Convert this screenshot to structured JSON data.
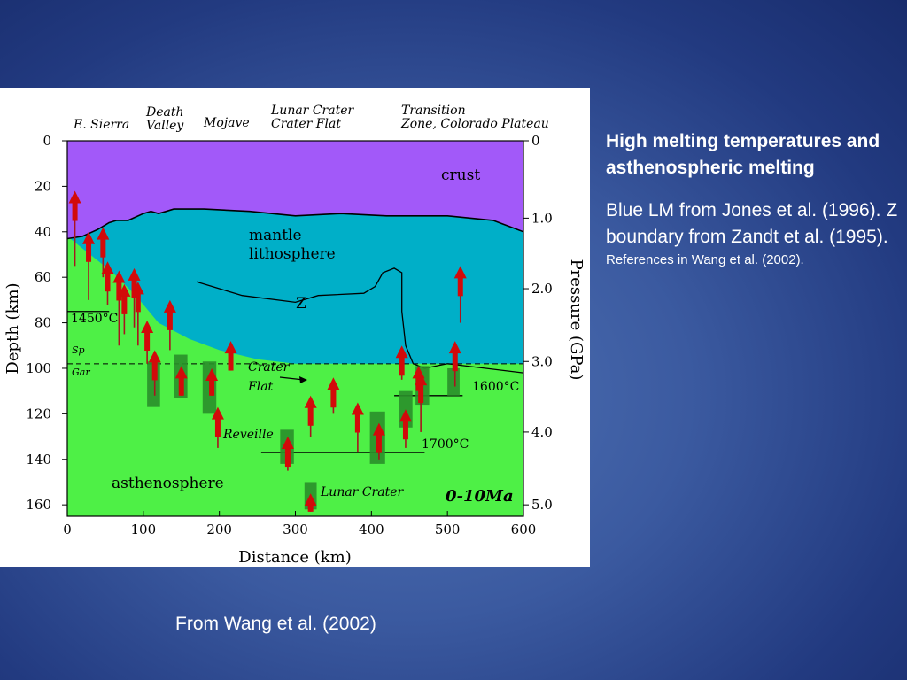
{
  "slide": {
    "title": "High melting temperatures and asthenospheric melting",
    "body": "Blue LM from Jones et al. (1996). Z boundary from Zandt et al. (1995).",
    "references": "References in Wang et al. (2002).",
    "caption": "From Wang et al. (2002)"
  },
  "figure": {
    "region_labels": [
      {
        "line1": "E. Sierra",
        "line2": ""
      },
      {
        "line1": "Death",
        "line2": "Valley"
      },
      {
        "line1": "Mojave",
        "line2": ""
      },
      {
        "line1": "Lunar Crater",
        "line2": "Crater Flat"
      },
      {
        "line1": "Transition",
        "line2": "Zone, Colorado Plateau"
      }
    ],
    "zone_labels": {
      "crust": "crust",
      "mantle_lithosphere_1": "mantle",
      "mantle_lithosphere_2": "lithosphere",
      "asthenosphere": "asthenosphere",
      "z_boundary": "Z",
      "sp": "Sp",
      "gar": "Gar"
    },
    "annotations": {
      "crater_flat_1": "Crater",
      "crater_flat_2": "Flat",
      "reveille": "Reveille",
      "lunar_crater": "Lunar Crater",
      "age": "0-10Ma",
      "t1450": "1450°C",
      "t1600": "1600°C",
      "t1700": "1700°C"
    },
    "colors": {
      "crust": "#a259f9",
      "mantle_lithosphere": "#00afc8",
      "asthenosphere": "#4ef046",
      "arrow": "#d20a0a",
      "box": "#2a8f2a"
    }
  },
  "chart_data": {
    "type": "cross-section",
    "xlabel": "Distance (km)",
    "ylabel": "Depth (km)",
    "y2label": "Pressure (GPa)",
    "xticks": [
      "0",
      "100",
      "200",
      "300",
      "400",
      "500",
      "600"
    ],
    "yticks": [
      "0",
      "20",
      "40",
      "60",
      "80",
      "100",
      "120",
      "140",
      "160"
    ],
    "y2ticks": [
      "0",
      "1.0",
      "2.0",
      "3.0",
      "4.0",
      "5.0"
    ],
    "xlim": [
      0,
      600
    ],
    "ylim": [
      0,
      165
    ],
    "y2_depths": [
      0,
      34,
      65,
      97,
      128,
      160
    ],
    "moho_depth": [
      [
        0,
        43
      ],
      [
        20,
        42
      ],
      [
        40,
        39
      ],
      [
        55,
        36
      ],
      [
        65,
        35
      ],
      [
        80,
        35
      ],
      [
        100,
        32
      ],
      [
        110,
        31
      ],
      [
        120,
        32
      ],
      [
        130,
        31
      ],
      [
        140,
        30
      ],
      [
        180,
        30
      ],
      [
        240,
        31
      ],
      [
        300,
        33
      ],
      [
        360,
        32
      ],
      [
        420,
        33
      ],
      [
        500,
        33
      ],
      [
        560,
        35
      ],
      [
        600,
        40
      ]
    ],
    "lab_depth": [
      [
        0,
        42
      ],
      [
        30,
        50
      ],
      [
        60,
        58
      ],
      [
        90,
        68
      ],
      [
        120,
        80
      ],
      [
        160,
        87
      ],
      [
        200,
        92
      ],
      [
        250,
        96
      ],
      [
        300,
        98
      ],
      [
        350,
        98
      ],
      [
        420,
        98
      ],
      [
        600,
        98
      ]
    ],
    "z_boundary": [
      [
        170,
        62
      ],
      [
        230,
        68
      ],
      [
        300,
        71
      ],
      [
        330,
        68
      ],
      [
        390,
        67
      ],
      [
        405,
        64
      ],
      [
        415,
        58
      ],
      [
        430,
        56
      ],
      [
        440,
        58
      ],
      [
        440,
        75
      ],
      [
        445,
        90
      ],
      [
        455,
        98
      ],
      [
        470,
        100
      ],
      [
        500,
        98
      ],
      [
        600,
        102
      ]
    ],
    "sp_gar_depth": 98,
    "isotherms": [
      {
        "label": "1450°C",
        "depth": 75,
        "x_range": [
          0,
          55
        ]
      },
      {
        "label": "1600°C",
        "depth": 112,
        "x_range": [
          430,
          520
        ]
      },
      {
        "label": "1700°C",
        "depth": 137,
        "x_range": [
          255,
          470
        ]
      }
    ],
    "arrows": [
      {
        "x": 10,
        "depth_top": 22,
        "depth_bottom": 55
      },
      {
        "x": 28,
        "depth_top": 40,
        "depth_bottom": 70
      },
      {
        "x": 47,
        "depth_top": 38,
        "depth_bottom": 60
      },
      {
        "x": 53,
        "depth_top": 53,
        "depth_bottom": 72
      },
      {
        "x": 68,
        "depth_top": 57,
        "depth_bottom": 90
      },
      {
        "x": 75,
        "depth_top": 63,
        "depth_bottom": 85
      },
      {
        "x": 88,
        "depth_top": 56,
        "depth_bottom": 82
      },
      {
        "x": 93,
        "depth_top": 62,
        "depth_bottom": 90
      },
      {
        "x": 105,
        "depth_top": 79,
        "depth_bottom": 98
      },
      {
        "x": 115,
        "depth_top": 92,
        "depth_bottom": 112
      },
      {
        "x": 135,
        "depth_top": 70,
        "depth_bottom": 92
      },
      {
        "x": 150,
        "depth_top": 99,
        "depth_bottom": 112
      },
      {
        "x": 190,
        "depth_top": 100,
        "depth_bottom": 112
      },
      {
        "x": 198,
        "depth_top": 117,
        "depth_bottom": 135
      },
      {
        "x": 215,
        "depth_top": 88,
        "depth_bottom": 101
      },
      {
        "x": 290,
        "depth_top": 130,
        "depth_bottom": 145
      },
      {
        "x": 320,
        "depth_top": 112,
        "depth_bottom": 130
      },
      {
        "x": 350,
        "depth_top": 104,
        "depth_bottom": 120
      },
      {
        "x": 382,
        "depth_top": 115,
        "depth_bottom": 137
      },
      {
        "x": 410,
        "depth_top": 124,
        "depth_bottom": 140
      },
      {
        "x": 440,
        "depth_top": 90,
        "depth_bottom": 105
      },
      {
        "x": 445,
        "depth_top": 118,
        "depth_bottom": 135
      },
      {
        "x": 462,
        "depth_top": 99,
        "depth_bottom": 110
      },
      {
        "x": 465,
        "depth_top": 102,
        "depth_bottom": 128
      },
      {
        "x": 510,
        "depth_top": 88,
        "depth_bottom": 108
      },
      {
        "x": 517,
        "depth_top": 55,
        "depth_bottom": 80
      },
      {
        "x": 320,
        "depth_top": 155,
        "depth_bottom": 163
      }
    ],
    "boxes": [
      {
        "x0": 105,
        "x1": 122,
        "depth_top": 97,
        "depth_bottom": 117
      },
      {
        "x0": 140,
        "x1": 158,
        "depth_top": 94,
        "depth_bottom": 113
      },
      {
        "x0": 178,
        "x1": 196,
        "depth_top": 97,
        "depth_bottom": 120
      },
      {
        "x0": 280,
        "x1": 298,
        "depth_top": 127,
        "depth_bottom": 142
      },
      {
        "x0": 312,
        "x1": 328,
        "depth_top": 150,
        "depth_bottom": 162
      },
      {
        "x0": 398,
        "x1": 418,
        "depth_top": 119,
        "depth_bottom": 142
      },
      {
        "x0": 436,
        "x1": 454,
        "depth_top": 110,
        "depth_bottom": 126
      },
      {
        "x0": 458,
        "x1": 476,
        "depth_top": 99,
        "depth_bottom": 116
      },
      {
        "x0": 500,
        "x1": 516,
        "depth_top": 100,
        "depth_bottom": 112
      }
    ]
  }
}
